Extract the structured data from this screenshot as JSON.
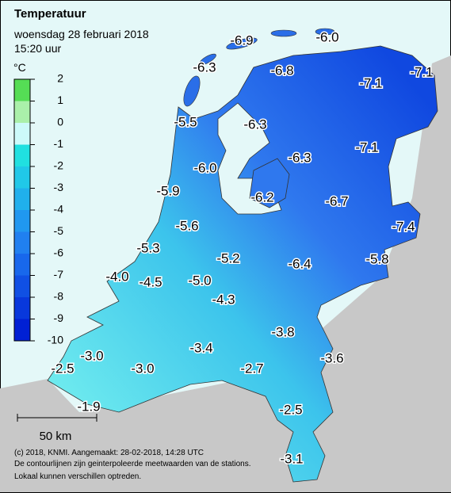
{
  "header": {
    "title": "Temperatuur",
    "date": "woensdag 28 februari 2018",
    "time": "15:20 uur"
  },
  "legend": {
    "unit": "°C",
    "ticks": [
      "2",
      "1",
      "0",
      "-1",
      "-2",
      "-3",
      "-4",
      "-5",
      "-6",
      "-7",
      "-8",
      "-9",
      "-10"
    ]
  },
  "stations": [
    "-6.9",
    "-6.0",
    "-6.3",
    "-6.8",
    "-7.1",
    "-7.1",
    "-5.5",
    "-6.3",
    "-6.3",
    "-7.1",
    "-6.0",
    "-5.9",
    "-6.2",
    "-6.7",
    "-7.4",
    "-5.6",
    "-5.3",
    "-5.2",
    "-6.4",
    "-5.8",
    "-4.0",
    "-4.5",
    "-5.0",
    "-4.3",
    "-3.8",
    "-3.4",
    "-3.6",
    "-3.0",
    "-2.5",
    "-3.0",
    "-2.7",
    "-2.5",
    "-1.9",
    "-3.1"
  ],
  "scale": "50 km",
  "footer": [
    "(c) 2018, KNMI. Aangemaakt: 28-02-2018, 14:28 UTC",
    "De contourlijnen zijn geinterpoleerde meetwaarden van de stations.",
    "Lokaal kunnen verschillen optreden."
  ]
}
